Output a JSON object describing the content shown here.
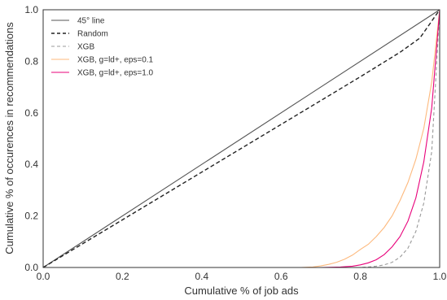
{
  "chart_data": {
    "type": "line",
    "xlabel": "Cumulative % of job ads",
    "ylabel": "Cumulative % of occurences in recommendations",
    "xlim": [
      0.0,
      1.0
    ],
    "ylim": [
      0.0,
      1.0
    ],
    "xticks": [
      "0.0",
      "0.2",
      "0.4",
      "0.6",
      "0.8",
      "1.0"
    ],
    "yticks": [
      "0.0",
      "0.2",
      "0.4",
      "0.6",
      "0.8",
      "1.0"
    ],
    "grid": false,
    "legend_position": "top-left",
    "series": [
      {
        "name": "45° line",
        "color": "#555555",
        "style": "solid",
        "x": [
          0.0,
          1.0
        ],
        "y": [
          0.0,
          1.0
        ]
      },
      {
        "name": "Random",
        "color": "#222222",
        "style": "dashed",
        "x": [
          0.0,
          0.2,
          0.4,
          0.6,
          0.8,
          0.9,
          0.95,
          1.0
        ],
        "y": [
          0.0,
          0.185,
          0.37,
          0.555,
          0.74,
          0.835,
          0.89,
          1.0
        ]
      },
      {
        "name": "XGB",
        "color": "#999999",
        "style": "dashed",
        "x": [
          0.0,
          0.8,
          0.82,
          0.84,
          0.86,
          0.88,
          0.9,
          0.92,
          0.94,
          0.96,
          0.98,
          1.0
        ],
        "y": [
          0.0,
          0.0,
          0.002,
          0.005,
          0.01,
          0.02,
          0.04,
          0.075,
          0.14,
          0.25,
          0.45,
          1.0
        ]
      },
      {
        "name": "XGB, g=ld+, eps=0.1",
        "color": "#fdb97d",
        "style": "solid",
        "x": [
          0.0,
          0.6,
          0.65,
          0.68,
          0.7,
          0.72,
          0.74,
          0.76,
          0.78,
          0.8,
          0.82,
          0.84,
          0.86,
          0.88,
          0.9,
          0.92,
          0.94,
          0.96,
          0.98,
          1.0
        ],
        "y": [
          0.0,
          0.0,
          0.0,
          0.002,
          0.006,
          0.012,
          0.02,
          0.032,
          0.048,
          0.07,
          0.09,
          0.12,
          0.155,
          0.2,
          0.26,
          0.33,
          0.42,
          0.54,
          0.72,
          1.0
        ]
      },
      {
        "name": "XGB, g=ld+, eps=1.0",
        "color": "#e8007a",
        "style": "solid",
        "x": [
          0.0,
          0.7,
          0.75,
          0.78,
          0.8,
          0.82,
          0.84,
          0.86,
          0.88,
          0.9,
          0.92,
          0.94,
          0.96,
          0.98,
          1.0
        ],
        "y": [
          0.0,
          0.0,
          0.002,
          0.005,
          0.01,
          0.018,
          0.03,
          0.05,
          0.08,
          0.12,
          0.18,
          0.27,
          0.41,
          0.62,
          1.0
        ]
      }
    ]
  }
}
